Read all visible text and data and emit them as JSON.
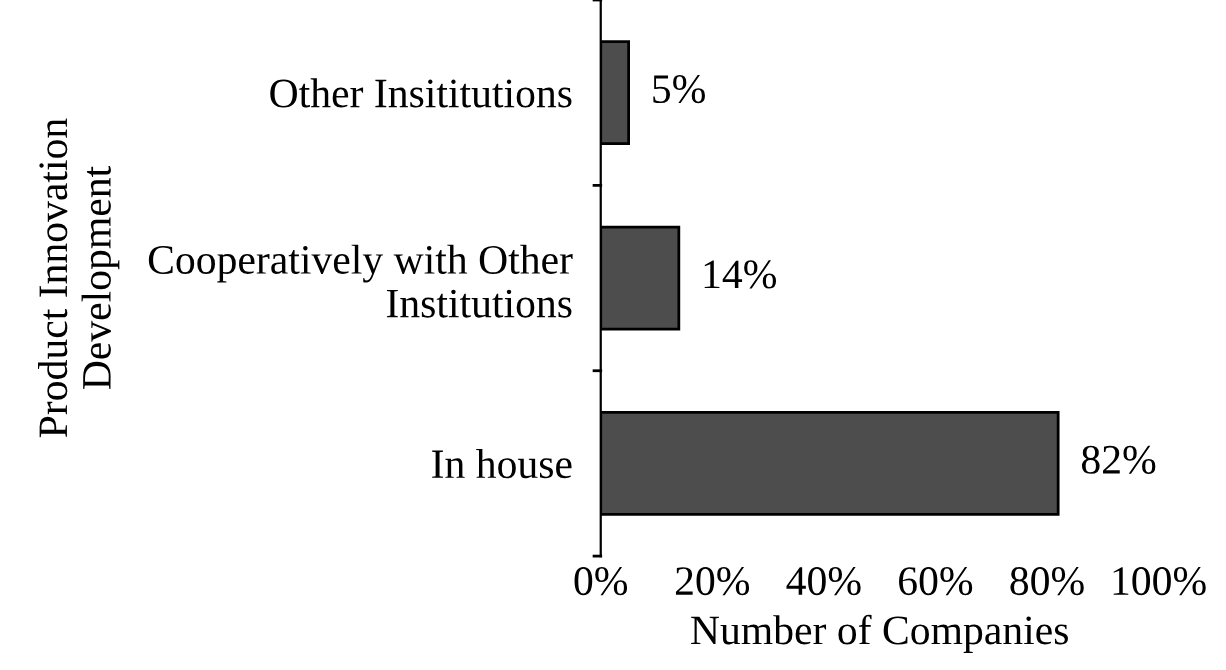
{
  "chart_data": {
    "type": "bar",
    "orientation": "horizontal",
    "ylabel": "Product Innovation\nDevelopment",
    "xlabel": "Number of Companies",
    "categories": [
      "Other Insititutions",
      "Cooperatively with Other\nInstitutions",
      "In house"
    ],
    "values": [
      5,
      14,
      82
    ],
    "value_labels": [
      "5%",
      "14%",
      "82%"
    ],
    "color": "#4d4d4d",
    "xlim": [
      0,
      100
    ],
    "xticks": [
      {
        "value": 0,
        "label": "0%"
      },
      {
        "value": 20,
        "label": "20%"
      },
      {
        "value": 40,
        "label": "40%"
      },
      {
        "value": 60,
        "label": "60%"
      },
      {
        "value": 80,
        "label": "80%"
      },
      {
        "value": 100,
        "label": "100%"
      }
    ],
    "grid": false,
    "legend": false
  }
}
